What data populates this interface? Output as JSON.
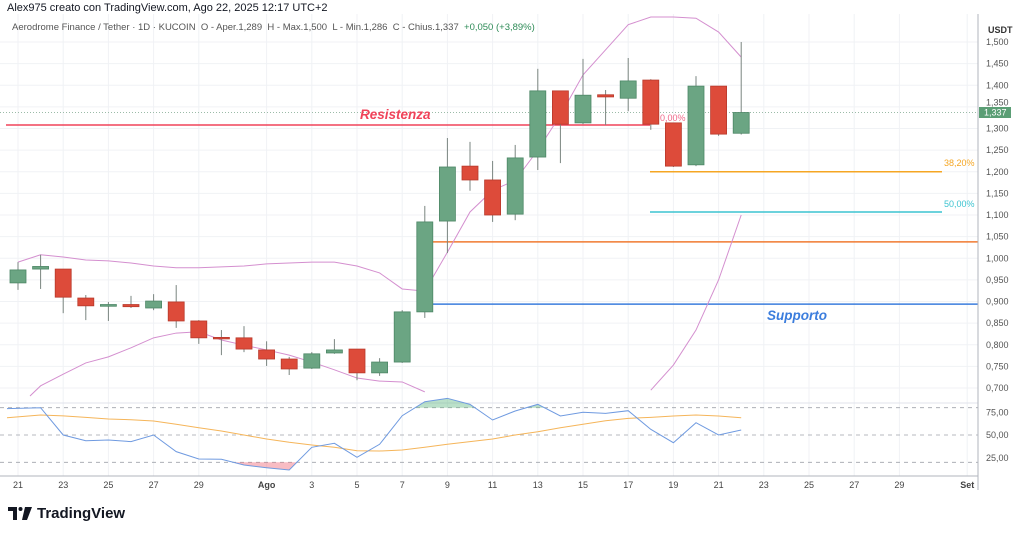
{
  "header": {
    "attribution": "Alex975 creato con TradingView.com, Ago 22, 2025 12:17 UTC+2"
  },
  "legend": {
    "symbol": "Aerodrome Finance / Tether · 1D · KUCOIN",
    "open": "O - Aper.1,289",
    "high": "H - Max.1,500",
    "low": "L - Min.1,286",
    "close": "C - Chius.1,337",
    "change": "+0,050 (+3,89%)"
  },
  "logo": {
    "text": "TradingView"
  },
  "chart_data": {
    "type": "candlestick",
    "currency_label": "USDT",
    "colors": {
      "up": "#6ba583",
      "down": "#dd4b3a",
      "bollinger": "#d48fcf",
      "rsi": "#6f9ae0",
      "rsi_ma": "#f5b55a",
      "resistance": "#f0435a",
      "support": "#3b7ddd",
      "level_orange": "#f07a30",
      "fib_382": "#f5a623",
      "fib_50": "#3cc3d0",
      "fib_0": "#f06a8a",
      "last_price": "#5b9e75"
    },
    "dates": [
      "Jul 21",
      "Jul 22",
      "Jul 23",
      "Jul 24",
      "Jul 25",
      "Jul 26",
      "Jul 27",
      "Jul 28",
      "Jul 29",
      "Jul 30",
      "Jul 31",
      "Ago 1",
      "Ago 2",
      "Ago 3",
      "Ago 4",
      "Ago 5",
      "Ago 6",
      "Ago 7",
      "Ago 8",
      "Ago 9",
      "Ago 10",
      "Ago 11",
      "Ago 12",
      "Ago 13",
      "Ago 14",
      "Ago 15",
      "Ago 16",
      "Ago 17",
      "Ago 18",
      "Ago 19",
      "Ago 20",
      "Ago 21",
      "Ago 22"
    ],
    "ohlc": [
      [
        0.943,
        0.991,
        0.927,
        0.973
      ],
      [
        0.975,
        1.008,
        0.929,
        0.981
      ],
      [
        0.975,
        0.975,
        0.873,
        0.91
      ],
      [
        0.908,
        0.915,
        0.857,
        0.89
      ],
      [
        0.889,
        0.899,
        0.855,
        0.893
      ],
      [
        0.893,
        0.913,
        0.885,
        0.888
      ],
      [
        0.885,
        0.917,
        0.88,
        0.901
      ],
      [
        0.899,
        0.938,
        0.839,
        0.855
      ],
      [
        0.855,
        0.857,
        0.802,
        0.816
      ],
      [
        0.817,
        0.834,
        0.776,
        0.815
      ],
      [
        0.816,
        0.843,
        0.783,
        0.79
      ],
      [
        0.788,
        0.808,
        0.751,
        0.767
      ],
      [
        0.767,
        0.772,
        0.73,
        0.744
      ],
      [
        0.746,
        0.783,
        0.744,
        0.779
      ],
      [
        0.781,
        0.813,
        0.779,
        0.788
      ],
      [
        0.79,
        0.79,
        0.718,
        0.735
      ],
      [
        0.735,
        0.769,
        0.728,
        0.76
      ],
      [
        0.76,
        0.88,
        0.758,
        0.876
      ],
      [
        0.876,
        1.121,
        0.862,
        1.084
      ],
      [
        1.086,
        1.278,
        1.012,
        1.211
      ],
      [
        1.213,
        1.269,
        1.156,
        1.181
      ],
      [
        1.181,
        1.225,
        1.084,
        1.1
      ],
      [
        1.102,
        1.262,
        1.088,
        1.232
      ],
      [
        1.234,
        1.438,
        1.204,
        1.387
      ],
      [
        1.387,
        1.387,
        1.22,
        1.31
      ],
      [
        1.313,
        1.461,
        1.31,
        1.377
      ],
      [
        1.378,
        1.389,
        1.308,
        1.373
      ],
      [
        1.37,
        1.463,
        1.34,
        1.41
      ],
      [
        1.412,
        1.414,
        1.297,
        1.31
      ],
      [
        1.313,
        1.313,
        1.211,
        1.213
      ],
      [
        1.216,
        1.421,
        1.213,
        1.398
      ],
      [
        1.398,
        1.398,
        1.283,
        1.287
      ],
      [
        1.289,
        1.5,
        1.286,
        1.337
      ]
    ],
    "bollinger_upper": [
      0.991,
      1.008,
      1.003,
      0.996,
      0.994,
      0.989,
      0.982,
      0.978,
      0.978,
      0.98,
      0.982,
      0.987,
      0.989,
      0.991,
      0.991,
      0.982,
      0.966,
      0.929,
      0.924,
      1.014,
      1.107,
      1.157,
      1.18,
      1.25,
      1.331,
      1.424,
      1.482,
      1.54,
      1.562,
      1.565,
      1.555,
      1.523,
      1.465
    ],
    "bollinger_lower": [
      0.677,
      0.705,
      0.732,
      0.758,
      0.772,
      0.793,
      0.816,
      0.827,
      0.83,
      0.811,
      0.799,
      0.788,
      0.776,
      0.76,
      0.742,
      0.723,
      0.716,
      0.714,
      0.691,
      null,
      null,
      null,
      null,
      null,
      null,
      null,
      null,
      null,
      0.695,
      0.753,
      0.834,
      0.95,
      1.1
    ],
    "rsi": [
      79,
      80,
      50,
      43.7,
      44.5,
      42.7,
      50,
      31.7,
      23.6,
      23.3,
      17,
      14,
      11.5,
      36.5,
      40.9,
      25.5,
      39.8,
      71.2,
      86.6,
      90.3,
      83.7,
      66.5,
      76.4,
      83.7,
      70.9,
      75,
      73.8,
      76.7,
      56.2,
      41.5,
      63.5,
      50,
      55.5
    ],
    "rsi_ma": [
      69,
      72,
      71,
      69.4,
      67.6,
      66.8,
      65.4,
      61.8,
      58,
      54.4,
      50,
      45.6,
      42,
      39,
      36.5,
      32.7,
      32.4,
      33.5,
      36.5,
      39.8,
      42.7,
      45.6,
      50,
      53.6,
      58,
      61.8,
      65.7,
      68.3,
      69.4,
      70.9,
      72,
      70.9,
      69
    ],
    "rsi_bands": [
      80,
      50,
      20
    ],
    "price_axis": {
      "ticks": [
        "1,500",
        "1,450",
        "1,400",
        "1,350",
        "1,300",
        "1,250",
        "1,200",
        "1,150",
        "1,100",
        "1,050",
        "1,000",
        "0,950",
        "0,900",
        "0,850",
        "0,800",
        "0,750",
        "0,700"
      ],
      "ylim": [
        0.69,
        1.56
      ]
    },
    "rsi_axis": {
      "ticks": [
        "75,00",
        "50,00",
        "25,00"
      ]
    },
    "x_axis": {
      "ticks": [
        "21",
        "23",
        "25",
        "27",
        "29",
        "Ago",
        "3",
        "5",
        "7",
        "9",
        "11",
        "13",
        "15",
        "17",
        "19",
        "21",
        "23",
        "25",
        "27",
        "29",
        "Set"
      ]
    },
    "last_price": "1,337",
    "levels": {
      "resistance": {
        "label": "Resistenza",
        "value": 1.308
      },
      "support": {
        "label": "Supporto",
        "value": 0.894
      },
      "orange": {
        "value": 1.038
      },
      "fib_0": {
        "label": "0,00%",
        "value": 1.308
      },
      "fib_382": {
        "label": "38,20%",
        "value": 1.2
      },
      "fib_50": {
        "label": "50,00%",
        "value": 1.107
      }
    }
  }
}
